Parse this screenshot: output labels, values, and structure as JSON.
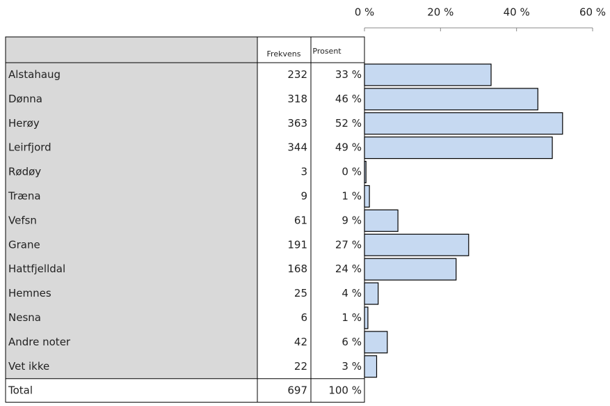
{
  "table": {
    "headers": [
      "Frekvens",
      "Prosent"
    ],
    "frequencies": [
      232,
      318,
      363,
      344,
      3,
      9,
      61,
      191,
      168,
      25,
      6,
      42,
      22
    ],
    "total": {
      "label": "Total",
      "frequency": 697,
      "percent": "100 %"
    }
  },
  "chart_data": {
    "type": "bar",
    "orientation": "horizontal",
    "categories": [
      "Alstahaug",
      "Dønna",
      "Herøy",
      "Leirfjord",
      "Rødøy",
      "Træna",
      "Vefsn",
      "Grane",
      "Hattfjelldal",
      "Hemnes",
      "Nesna",
      "Andre noter",
      "Vet ikke"
    ],
    "values": [
      33.3,
      45.6,
      52.1,
      49.4,
      0.4,
      1.3,
      8.8,
      27.4,
      24.1,
      3.6,
      0.9,
      6.0,
      3.2
    ],
    "value_labels": [
      "33 %",
      "46 %",
      "52 %",
      "49 %",
      "0 %",
      "1 %",
      "9 %",
      "27 %",
      "24 %",
      "4 %",
      "1 %",
      "6 %",
      "3 %"
    ],
    "color": "#c6d9f1",
    "xlim": [
      0,
      60
    ],
    "xticks": [
      {
        "value": 0,
        "label": "0 %"
      },
      {
        "value": 20,
        "label": "20 %"
      },
      {
        "value": 40,
        "label": "40 %"
      },
      {
        "value": 60,
        "label": "60 %"
      }
    ]
  }
}
